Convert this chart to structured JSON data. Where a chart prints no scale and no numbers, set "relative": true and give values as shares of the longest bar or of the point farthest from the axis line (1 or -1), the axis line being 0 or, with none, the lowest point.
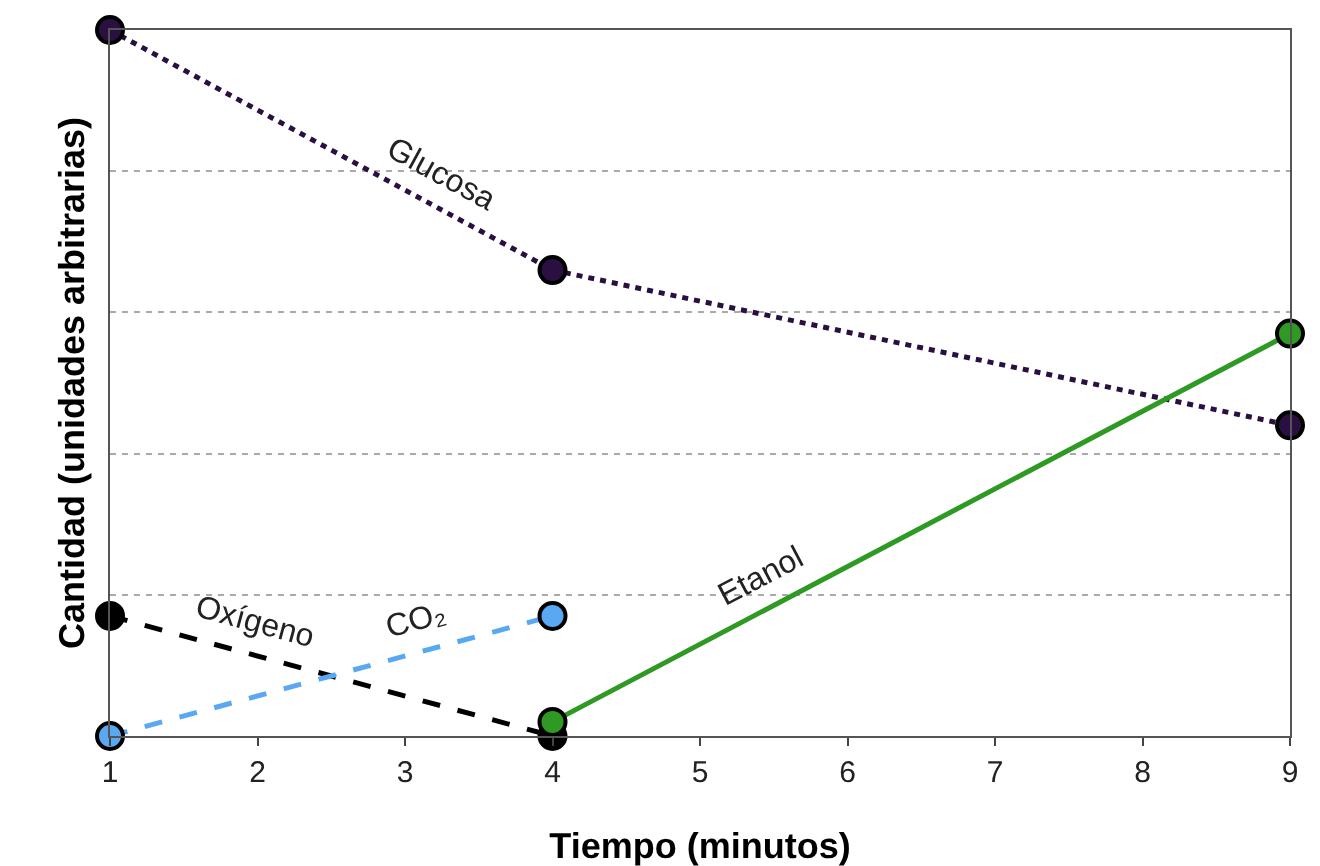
{
  "chart_data": {
    "type": "line",
    "xlabel": "Tiempo (minutos)",
    "ylabel": "Cantidad (unidades arbitrarias)",
    "relative": true,
    "xlim": [
      1,
      9
    ],
    "xticks": [
      1,
      2,
      3,
      4,
      5,
      6,
      7,
      8,
      9
    ],
    "grid": "y",
    "legend": false,
    "marker": "circle",
    "series": [
      {
        "name": "Glucosa",
        "color": "#2a1040",
        "x": [
          1,
          4,
          9
        ],
        "values": [
          1,
          0.66,
          0.44
        ],
        "line_style": "dotted"
      },
      {
        "name": "Oxígeno",
        "color": "#000000",
        "x": [
          1,
          4
        ],
        "values": [
          0.17,
          0
        ],
        "line_style": "dashed"
      },
      {
        "name": "CO₂",
        "color": "#5aa8f2",
        "x": [
          1,
          4
        ],
        "values": [
          0,
          0.17
        ],
        "line_style": "dashed"
      },
      {
        "name": "Etanol",
        "color": "#2e9a24",
        "x": [
          4,
          9
        ],
        "values": [
          0.02,
          0.57
        ],
        "line_style": "solid"
      }
    ]
  }
}
